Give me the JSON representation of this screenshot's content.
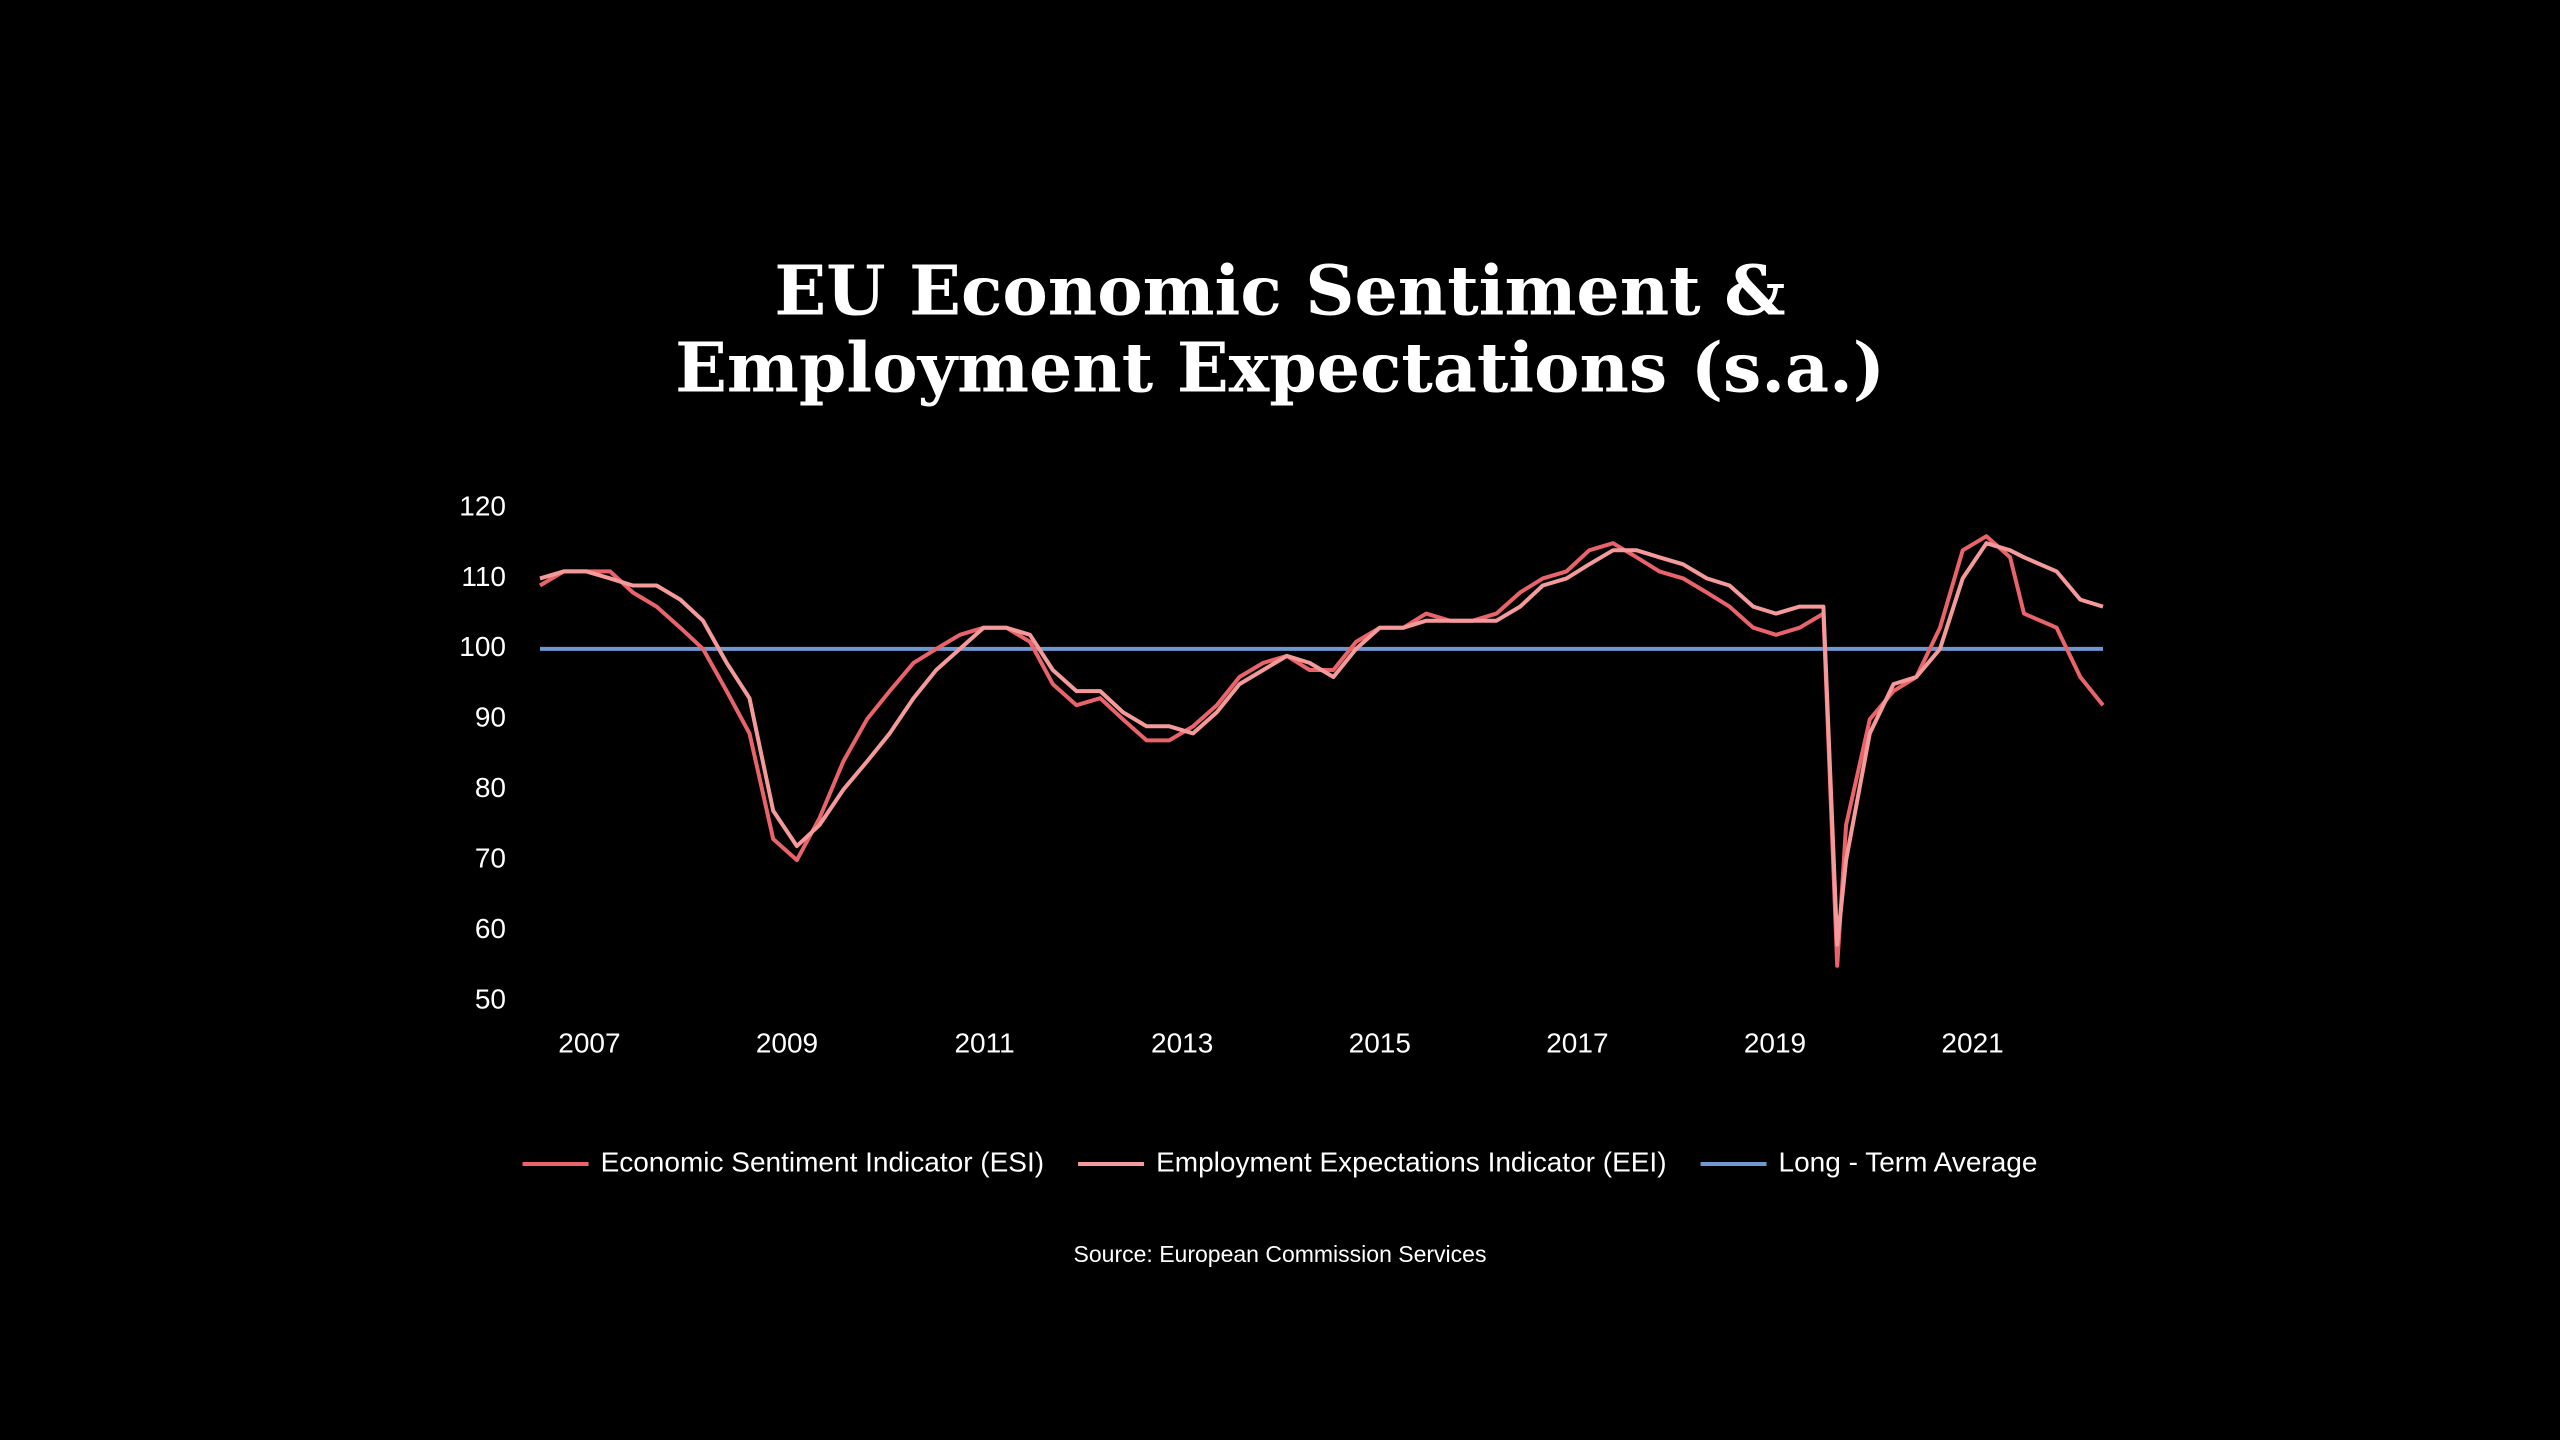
{
  "chart_data": {
    "type": "line",
    "title": [
      "EU Economic Sentiment &",
      "Employment Expectations (s.a.)"
    ],
    "x": [
      2006.5,
      2006.74,
      2006.97,
      2007.21,
      2007.44,
      2007.68,
      2007.92,
      2008.15,
      2008.39,
      2008.62,
      2008.86,
      2009.1,
      2009.33,
      2009.57,
      2009.81,
      2010.04,
      2010.28,
      2010.51,
      2010.75,
      2010.99,
      2011.22,
      2011.46,
      2011.69,
      2011.93,
      2012.17,
      2012.4,
      2012.64,
      2012.87,
      2013.11,
      2013.35,
      2013.58,
      2013.82,
      2014.06,
      2014.29,
      2014.53,
      2014.76,
      2015.0,
      2015.24,
      2015.47,
      2015.71,
      2015.94,
      2016.18,
      2016.42,
      2016.65,
      2016.89,
      2017.12,
      2017.36,
      2017.6,
      2017.83,
      2018.07,
      2018.31,
      2018.54,
      2018.78,
      2019.01,
      2019.25,
      2019.49,
      2019.63,
      2019.72,
      2019.96,
      2020.2,
      2020.43,
      2020.67,
      2020.9,
      2021.14,
      2021.38,
      2021.52,
      2021.85,
      2022.09,
      2022.32
    ],
    "series": [
      {
        "name": "Economic Sentiment Indicator (ESI)",
        "color": "#e8636a",
        "values": [
          109,
          111,
          111,
          111,
          108,
          106,
          103,
          100,
          94,
          88,
          73,
          70,
          76,
          84,
          90,
          94,
          98,
          100,
          102,
          103,
          103,
          101,
          95,
          92,
          93,
          90,
          87,
          87,
          89,
          92,
          96,
          98,
          99,
          97,
          97,
          101,
          103,
          103,
          105,
          104,
          104,
          105,
          108,
          110,
          111,
          114,
          115,
          113,
          111,
          110,
          108,
          106,
          103,
          102,
          103,
          105,
          55,
          75,
          90,
          94,
          96,
          103,
          114,
          116,
          113,
          105,
          103,
          96,
          92
        ]
      },
      {
        "name": "Employment Expectations Indicator (EEI)",
        "color": "#f59a9a",
        "values": [
          110,
          111,
          111,
          110,
          109,
          109,
          107,
          104,
          98,
          93,
          77,
          72,
          75,
          80,
          84,
          88,
          93,
          97,
          100,
          103,
          103,
          102,
          97,
          94,
          94,
          91,
          89,
          89,
          88,
          91,
          95,
          97,
          99,
          98,
          96,
          100,
          103,
          103,
          104,
          104,
          104,
          104,
          106,
          109,
          110,
          112,
          114,
          114,
          113,
          112,
          110,
          109,
          106,
          105,
          106,
          106,
          58,
          70,
          88,
          95,
          96,
          100,
          110,
          115,
          114,
          113,
          111,
          107,
          106
        ]
      }
    ],
    "reference_line": {
      "name": "Long - Term Average",
      "value": 100,
      "color": "#6f97d1"
    },
    "xlim": [
      2006.5,
      2022.32
    ],
    "xticks": [
      2007,
      2009,
      2011,
      2013,
      2015,
      2017,
      2019,
      2021
    ],
    "ylim": [
      50,
      120
    ],
    "yticks": [
      50,
      60,
      70,
      80,
      90,
      100,
      110,
      120
    ],
    "source": "Source: European Commission Services"
  }
}
